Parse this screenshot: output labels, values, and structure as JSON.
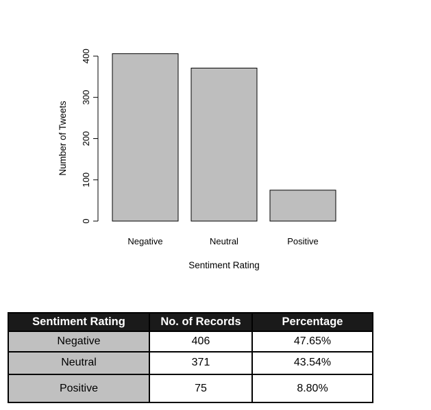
{
  "chart_data": {
    "type": "bar",
    "title": "",
    "xlabel": "Sentiment Rating",
    "ylabel": "Number of Tweets",
    "categories": [
      "Negative",
      "Neutral",
      "Positive"
    ],
    "values": [
      406,
      371,
      75
    ],
    "ylim": [
      0,
      400
    ],
    "yticks": [
      "0",
      "100",
      "200",
      "300",
      "400"
    ],
    "bar_color": "#bebebe",
    "grid": false
  },
  "table": {
    "headers": [
      "Sentiment Rating",
      "No. of Records",
      "Percentage"
    ],
    "rows": [
      {
        "rating": "Negative",
        "records": "406",
        "percentage": "47.65%"
      },
      {
        "rating": "Neutral",
        "records": "371",
        "percentage": "43.54%"
      },
      {
        "rating": "Positive",
        "records": "75",
        "percentage": "8.80%"
      }
    ],
    "header_color": "#1a1a1a",
    "rating_cell_color": "#c0c0c0"
  }
}
